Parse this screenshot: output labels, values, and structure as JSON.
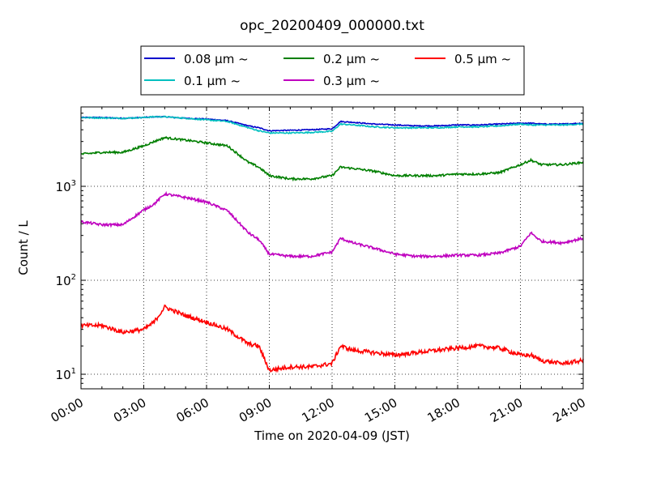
{
  "chart_data": {
    "type": "line",
    "title": "opc_20200409_000000.txt",
    "xlabel": "Time on 2020-04-09 (JST)",
    "ylabel": "Count / L",
    "x_unit": "hours",
    "xlim": [
      0,
      24
    ],
    "ylim": [
      7,
      7000
    ],
    "yscale": "log",
    "grid": true,
    "legend_position": "top",
    "x_ticks": [
      {
        "value": 0,
        "label": "00:00"
      },
      {
        "value": 3,
        "label": "03:00"
      },
      {
        "value": 6,
        "label": "06:00"
      },
      {
        "value": 9,
        "label": "09:00"
      },
      {
        "value": 12,
        "label": "12:00"
      },
      {
        "value": 15,
        "label": "15:00"
      },
      {
        "value": 18,
        "label": "18:00"
      },
      {
        "value": 21,
        "label": "21:00"
      },
      {
        "value": 24,
        "label": "24:00"
      }
    ],
    "y_ticks": [
      {
        "value": 10,
        "label": "10",
        "exp": "1"
      },
      {
        "value": 100,
        "label": "10",
        "exp": "2"
      },
      {
        "value": 1000,
        "label": "10",
        "exp": "3"
      }
    ],
    "x": [
      0,
      1,
      2,
      3,
      3.5,
      4,
      5,
      6,
      7,
      8,
      8.5,
      9,
      10,
      11,
      12,
      12.4,
      13,
      14,
      15,
      16,
      17,
      18,
      19,
      20,
      21,
      21.5,
      22,
      23,
      24
    ],
    "series": [
      {
        "name": "0.08 μm ~",
        "color": "#0000cc",
        "values": [
          5400,
          5400,
          5300,
          5400,
          5500,
          5500,
          5300,
          5200,
          5000,
          4400,
          4200,
          3900,
          3950,
          4000,
          4100,
          4900,
          4800,
          4600,
          4500,
          4400,
          4400,
          4500,
          4500,
          4600,
          4700,
          4700,
          4600,
          4600,
          4700
        ]
      },
      {
        "name": "0.1 μm ~",
        "color": "#00bfbf",
        "values": [
          5400,
          5350,
          5300,
          5400,
          5500,
          5500,
          5300,
          5100,
          4900,
          4200,
          3900,
          3700,
          3700,
          3750,
          3850,
          4600,
          4500,
          4300,
          4200,
          4200,
          4200,
          4300,
          4300,
          4400,
          4600,
          4500,
          4500,
          4500,
          4600
        ]
      },
      {
        "name": "0.2 μm ~",
        "color": "#007f00",
        "values": [
          2200,
          2300,
          2300,
          2700,
          3000,
          3300,
          3100,
          2900,
          2700,
          1800,
          1600,
          1300,
          1200,
          1200,
          1300,
          1600,
          1550,
          1450,
          1300,
          1300,
          1300,
          1350,
          1350,
          1400,
          1700,
          1900,
          1700,
          1700,
          1800
        ]
      },
      {
        "name": "0.3 μm ~",
        "color": "#bf00bf",
        "values": [
          420,
          390,
          390,
          560,
          650,
          830,
          760,
          680,
          550,
          320,
          270,
          190,
          180,
          180,
          200,
          280,
          250,
          220,
          190,
          180,
          180,
          185,
          185,
          195,
          230,
          320,
          260,
          250,
          280
        ]
      },
      {
        "name": "0.5 μm ~",
        "color": "#ff0000",
        "values": [
          33,
          33,
          28,
          30,
          36,
          52,
          42,
          36,
          30,
          21,
          20,
          11,
          12,
          12,
          13,
          20,
          18,
          17,
          16,
          17,
          18,
          19,
          20,
          19,
          16,
          16,
          14,
          13,
          14
        ]
      }
    ]
  }
}
